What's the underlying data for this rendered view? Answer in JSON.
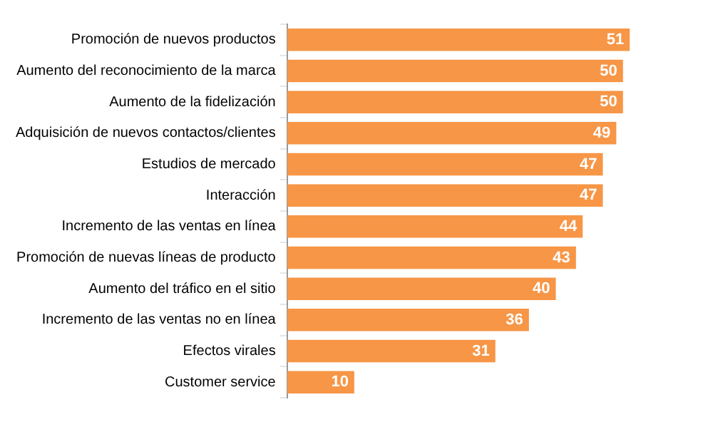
{
  "chart_data": {
    "type": "bar",
    "orientation": "horizontal",
    "categories": [
      "Promoción de nuevos productos",
      "Aumento del reconocimiento de la marca",
      "Aumento de la fidelización",
      "Adquisición de nuevos contactos/clientes",
      "Estudios de mercado",
      "Interacción",
      "Incremento de las ventas en línea",
      "Promoción de nuevas líneas de producto",
      "Aumento del tráfico en el sitio",
      "Incremento de las ventas no en línea",
      "Efectos virales",
      "Customer service"
    ],
    "values": [
      51,
      50,
      50,
      49,
      47,
      47,
      44,
      43,
      40,
      36,
      31,
      10
    ],
    "color": "#f79646",
    "data_labels": true,
    "grid": false,
    "tick_labels": "y"
  }
}
